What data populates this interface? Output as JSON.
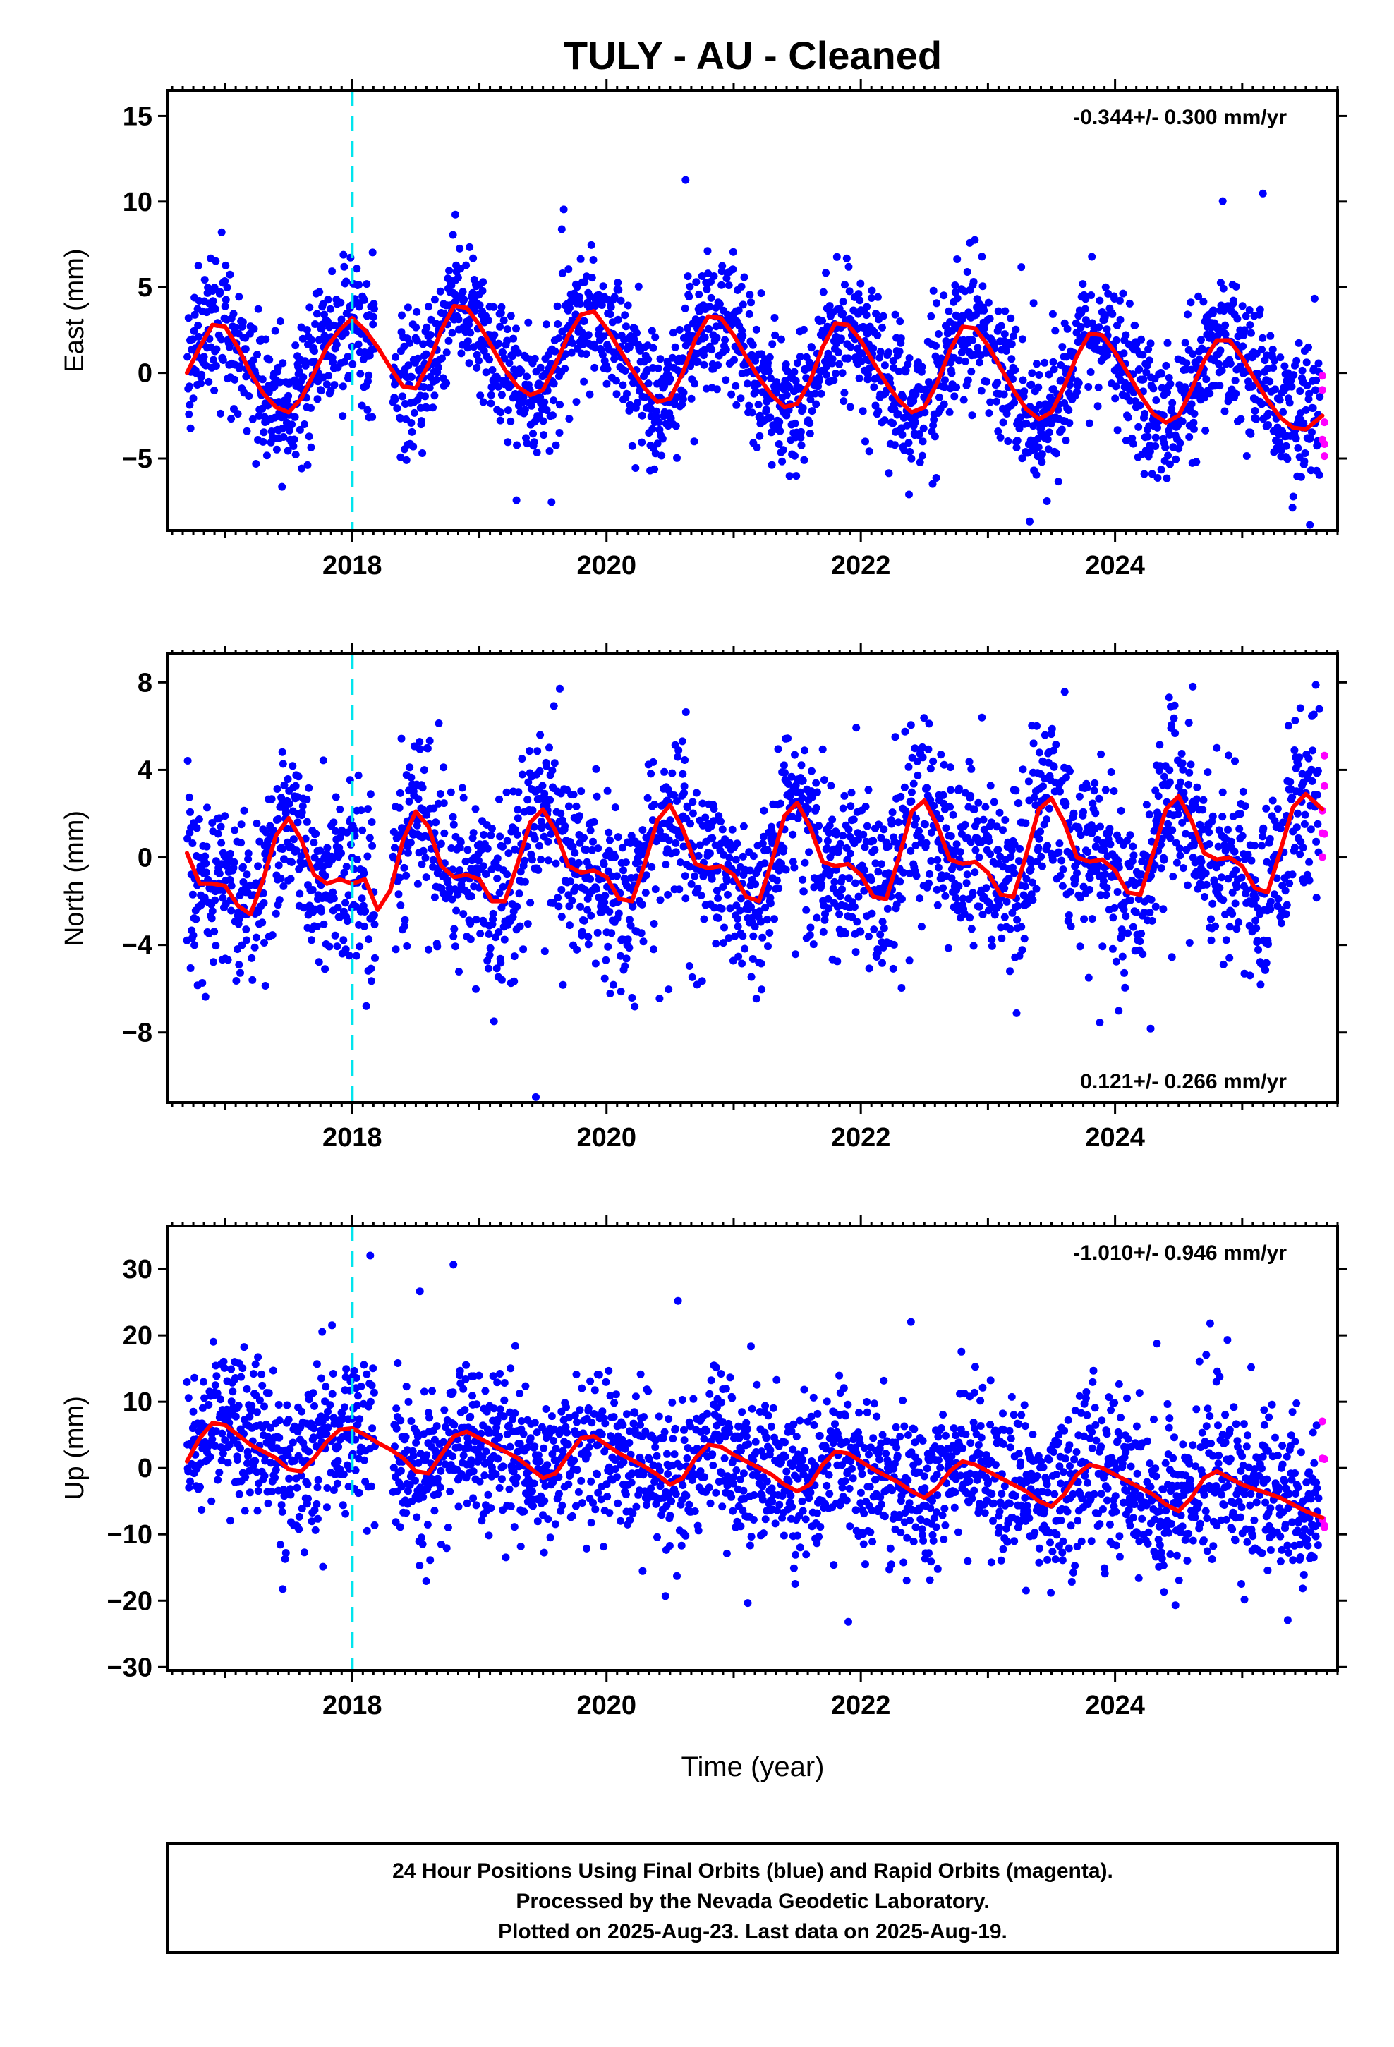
{
  "title": "TULY  - AU - Cleaned",
  "xaxis_label": "Time (year)",
  "footer": {
    "line1": "24 Hour Positions Using Final Orbits (blue) and Rapid Orbits (magenta).",
    "line2": "Processed by the Nevada Geodetic Laboratory.",
    "line3": "Plotted on 2025-Aug-23. Last data on 2025-Aug-19."
  },
  "colors": {
    "final_orbits": "#0000ff",
    "rapid_orbits": "#ff00ff",
    "model_fit": "#ff0000",
    "event_line": "#00e5ee"
  },
  "chart_data": [
    {
      "type": "scatter",
      "ylabel": "East (mm)",
      "rate_text": "-0.344+/- 0.300 mm/yr",
      "rate_position": "top-right",
      "xlim": [
        2016.55,
        2025.75
      ],
      "ylim": [
        -9.2,
        16.5
      ],
      "xticks": [
        2018,
        2020,
        2022,
        2024
      ],
      "yticks": [
        -5,
        0,
        5,
        10,
        15
      ],
      "event_line_x": 2018.0,
      "start": 2016.7,
      "end": 2025.63,
      "fit_curve": {
        "x": [
          2016.7,
          2016.8,
          2016.9,
          2017.0,
          2017.1,
          2017.2,
          2017.3,
          2017.4,
          2017.5,
          2017.6,
          2017.7,
          2017.8,
          2017.9,
          2018.0,
          2018.1,
          2018.2,
          2018.3,
          2018.4,
          2018.5,
          2018.6,
          2018.7,
          2018.8,
          2018.9,
          2019.0,
          2019.1,
          2019.2,
          2019.3,
          2019.4,
          2019.5,
          2019.6,
          2019.7,
          2019.8,
          2019.9,
          2020.0,
          2020.1,
          2020.2,
          2020.3,
          2020.4,
          2020.5,
          2020.6,
          2020.7,
          2020.8,
          2020.9,
          2021.0,
          2021.1,
          2021.2,
          2021.3,
          2021.4,
          2021.5,
          2021.6,
          2021.7,
          2021.8,
          2021.9,
          2022.0,
          2022.1,
          2022.2,
          2022.3,
          2022.4,
          2022.5,
          2022.6,
          2022.7,
          2022.8,
          2022.9,
          2023.0,
          2023.1,
          2023.2,
          2023.3,
          2023.4,
          2023.5,
          2023.6,
          2023.7,
          2023.8,
          2023.9,
          2024.0,
          2024.1,
          2024.2,
          2024.3,
          2024.4,
          2024.5,
          2024.6,
          2024.7,
          2024.8,
          2024.9,
          2025.0,
          2025.1,
          2025.2,
          2025.3,
          2025.4,
          2025.5,
          2025.63
        ],
        "y": [
          0.0,
          1.5,
          2.8,
          2.7,
          1.5,
          0.0,
          -1.2,
          -2.0,
          -2.3,
          -1.5,
          0.0,
          1.5,
          2.5,
          3.2,
          2.5,
          1.5,
          0.3,
          -0.8,
          -0.9,
          0.5,
          2.5,
          3.9,
          3.8,
          2.8,
          1.5,
          0.2,
          -0.8,
          -1.3,
          -1.0,
          0.5,
          2.2,
          3.4,
          3.6,
          2.6,
          1.4,
          0.2,
          -0.9,
          -1.7,
          -1.5,
          0.0,
          2.0,
          3.3,
          3.2,
          2.2,
          0.9,
          -0.3,
          -1.3,
          -2.0,
          -1.8,
          -0.5,
          1.5,
          2.9,
          2.8,
          1.9,
          0.6,
          -0.6,
          -1.6,
          -2.3,
          -2.0,
          -0.6,
          1.3,
          2.7,
          2.6,
          1.6,
          0.3,
          -1.0,
          -2.1,
          -2.7,
          -2.3,
          -0.8,
          1.0,
          2.3,
          2.2,
          1.2,
          0.0,
          -1.3,
          -2.4,
          -2.9,
          -2.5,
          -1.0,
          0.7,
          1.9,
          1.9,
          0.9,
          -0.4,
          -1.6,
          -2.6,
          -3.2,
          -3.3,
          -2.5
        ]
      }
    },
    {
      "type": "scatter",
      "ylabel": "North (mm)",
      "rate_text": "0.121+/- 0.266 mm/yr",
      "rate_position": "bottom-right",
      "xlim": [
        2016.55,
        2025.75
      ],
      "ylim": [
        -11.2,
        9.3
      ],
      "xticks": [
        2018,
        2020,
        2022,
        2024
      ],
      "yticks": [
        -8,
        -4,
        0,
        4,
        8
      ],
      "event_line_x": 2018.0,
      "start": 2016.7,
      "end": 2025.63,
      "fit_curve": {
        "x": [
          2016.7,
          2016.8,
          2016.9,
          2017.0,
          2017.1,
          2017.2,
          2017.3,
          2017.4,
          2017.5,
          2017.6,
          2017.7,
          2017.8,
          2017.9,
          2018.0,
          2018.1,
          2018.2,
          2018.3,
          2018.4,
          2018.5,
          2018.6,
          2018.7,
          2018.8,
          2018.9,
          2019.0,
          2019.1,
          2019.2,
          2019.3,
          2019.4,
          2019.5,
          2019.6,
          2019.7,
          2019.8,
          2019.9,
          2020.0,
          2020.1,
          2020.2,
          2020.3,
          2020.4,
          2020.5,
          2020.6,
          2020.7,
          2020.8,
          2020.9,
          2021.0,
          2021.1,
          2021.2,
          2021.3,
          2021.4,
          2021.5,
          2021.6,
          2021.7,
          2021.8,
          2021.9,
          2022.0,
          2022.1,
          2022.2,
          2022.3,
          2022.4,
          2022.5,
          2022.6,
          2022.7,
          2022.8,
          2022.9,
          2023.0,
          2023.1,
          2023.2,
          2023.3,
          2023.4,
          2023.5,
          2023.6,
          2023.7,
          2023.8,
          2023.9,
          2024.0,
          2024.1,
          2024.2,
          2024.3,
          2024.4,
          2024.5,
          2024.6,
          2024.7,
          2024.8,
          2024.9,
          2025.0,
          2025.1,
          2025.2,
          2025.3,
          2025.4,
          2025.5,
          2025.63
        ],
        "y": [
          0.2,
          -1.2,
          -1.2,
          -1.3,
          -2.2,
          -2.6,
          -1.0,
          1.0,
          1.8,
          0.8,
          -0.8,
          -1.2,
          -1.0,
          -1.2,
          -1.0,
          -2.4,
          -1.5,
          0.8,
          2.1,
          1.4,
          -0.4,
          -0.9,
          -0.8,
          -1.0,
          -2.0,
          -2.0,
          -0.3,
          1.6,
          2.2,
          1.2,
          -0.4,
          -0.7,
          -0.6,
          -0.9,
          -1.9,
          -2.0,
          -0.3,
          1.7,
          2.4,
          1.3,
          -0.3,
          -0.5,
          -0.4,
          -0.8,
          -1.8,
          -2.0,
          -0.2,
          1.9,
          2.5,
          1.4,
          -0.2,
          -0.4,
          -0.3,
          -0.8,
          -1.8,
          -1.9,
          0.0,
          2.1,
          2.6,
          1.5,
          -0.1,
          -0.3,
          -0.2,
          -0.7,
          -1.7,
          -1.8,
          0.1,
          2.2,
          2.7,
          1.6,
          0.0,
          -0.2,
          -0.1,
          -0.6,
          -1.6,
          -1.7,
          0.2,
          2.2,
          2.8,
          1.7,
          0.2,
          -0.1,
          0.0,
          -0.4,
          -1.4,
          -1.6,
          0.3,
          2.3,
          2.9,
          2.2
        ]
      }
    },
    {
      "type": "scatter",
      "ylabel": "Up (mm)",
      "rate_text": "-1.010+/- 0.946 mm/yr",
      "rate_position": "top-right",
      "xlim": [
        2016.55,
        2025.75
      ],
      "ylim": [
        -30.5,
        36.5
      ],
      "xticks": [
        2018,
        2020,
        2022,
        2024
      ],
      "yticks": [
        -30,
        -20,
        -10,
        0,
        10,
        20,
        30
      ],
      "event_line_x": 2018.0,
      "start": 2016.7,
      "end": 2025.63,
      "fit_curve": {
        "x": [
          2016.7,
          2016.8,
          2016.9,
          2017.0,
          2017.1,
          2017.2,
          2017.3,
          2017.4,
          2017.5,
          2017.6,
          2017.7,
          2017.8,
          2017.9,
          2018.0,
          2018.1,
          2018.2,
          2018.3,
          2018.4,
          2018.5,
          2018.6,
          2018.7,
          2018.8,
          2018.9,
          2019.0,
          2019.1,
          2019.2,
          2019.3,
          2019.4,
          2019.5,
          2019.6,
          2019.7,
          2019.8,
          2019.9,
          2020.0,
          2020.1,
          2020.2,
          2020.3,
          2020.4,
          2020.5,
          2020.6,
          2020.7,
          2020.8,
          2020.9,
          2021.0,
          2021.1,
          2021.2,
          2021.3,
          2021.4,
          2021.5,
          2021.6,
          2021.7,
          2021.8,
          2021.9,
          2022.0,
          2022.1,
          2022.2,
          2022.3,
          2022.4,
          2022.5,
          2022.6,
          2022.7,
          2022.8,
          2022.9,
          2023.0,
          2023.1,
          2023.2,
          2023.3,
          2023.4,
          2023.5,
          2023.6,
          2023.7,
          2023.8,
          2023.9,
          2024.0,
          2024.1,
          2024.2,
          2024.3,
          2024.4,
          2024.5,
          2024.6,
          2024.7,
          2024.8,
          2024.9,
          2025.0,
          2025.1,
          2025.2,
          2025.3,
          2025.4,
          2025.5,
          2025.63
        ],
        "y": [
          1.0,
          4.5,
          6.8,
          6.5,
          5.0,
          3.5,
          2.5,
          1.5,
          -0.2,
          -0.5,
          1.5,
          4.0,
          5.8,
          6.0,
          5.0,
          3.8,
          2.8,
          1.5,
          -0.5,
          -0.8,
          2.0,
          4.8,
          5.5,
          4.5,
          3.5,
          2.5,
          1.5,
          0.0,
          -1.5,
          -0.8,
          2.0,
          4.5,
          4.8,
          3.5,
          2.2,
          1.2,
          0.2,
          -1.0,
          -2.5,
          -1.5,
          1.5,
          3.5,
          3.2,
          2.0,
          1.0,
          0.0,
          -1.0,
          -2.5,
          -3.5,
          -2.5,
          0.5,
          2.5,
          2.2,
          1.0,
          -0.2,
          -1.2,
          -2.2,
          -3.5,
          -4.5,
          -3.0,
          -0.5,
          1.0,
          0.5,
          -0.5,
          -1.5,
          -2.5,
          -3.5,
          -5.0,
          -5.8,
          -4.0,
          -1.0,
          0.5,
          0.0,
          -1.0,
          -2.0,
          -3.0,
          -4.0,
          -5.5,
          -6.5,
          -4.5,
          -1.5,
          -0.5,
          -1.5,
          -2.5,
          -3.2,
          -3.8,
          -4.5,
          -5.5,
          -6.5,
          -7.5
        ]
      }
    }
  ]
}
